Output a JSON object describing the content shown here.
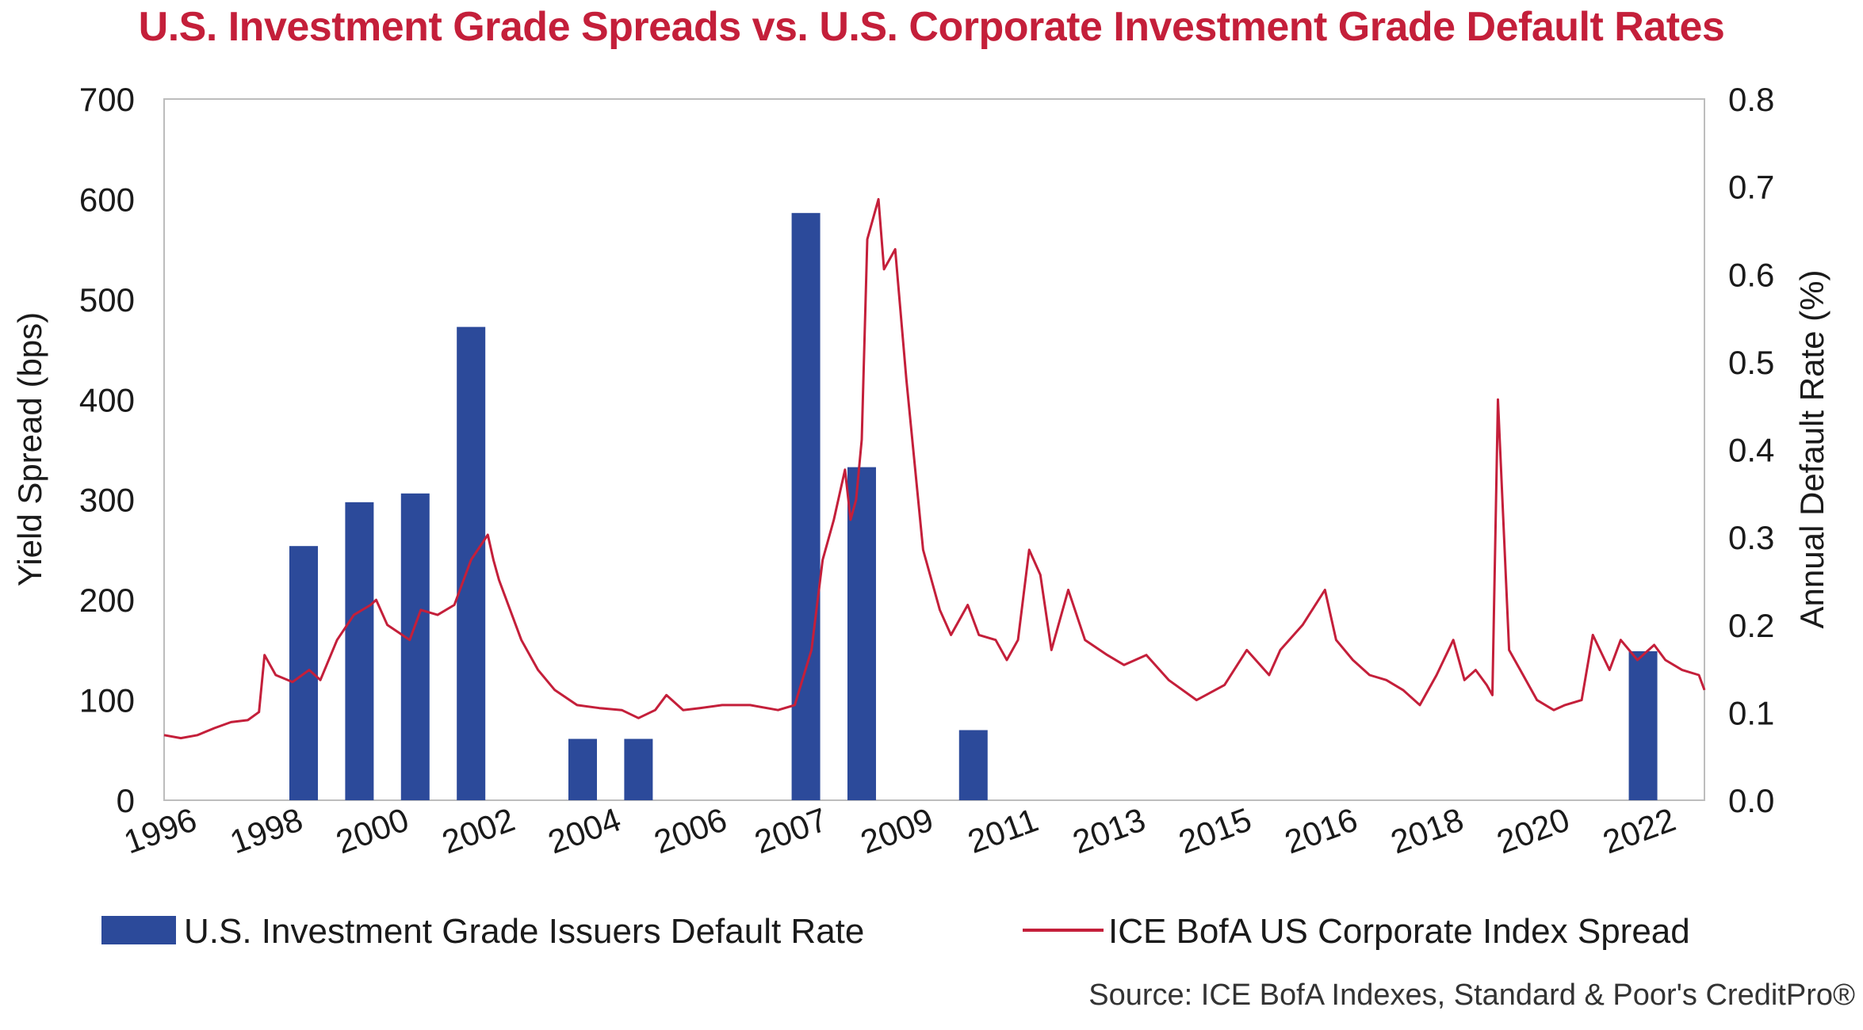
{
  "chart_data": {
    "type": "bar+line",
    "title": "U.S. Investment Grade Spreads vs. U.S. Corporate Investment Grade Default Rates",
    "ylabel_left": "Yield Spread (bps)",
    "ylabel_right": "Annual Default Rate (%)",
    "ylim_left": [
      0,
      700
    ],
    "ylim_right": [
      0,
      0.8
    ],
    "yticks_left": [
      "0",
      "100",
      "200",
      "300",
      "400",
      "500",
      "600",
      "700"
    ],
    "yticks_right": [
      "0.0",
      "0.1",
      "0.2",
      "0.3",
      "0.4",
      "0.5",
      "0.6",
      "0.7",
      "0.8"
    ],
    "xlim": [
      1996.0,
      2023.6
    ],
    "x_tick_labels": [
      "1996",
      "1998",
      "2000",
      "2002",
      "2004",
      "2006",
      "2007",
      "2009",
      "2011",
      "2013",
      "2015",
      "2016",
      "2018",
      "2020",
      "2022"
    ],
    "x_tick_positions": [
      1996.0,
      1997.9,
      1999.8,
      2001.7,
      2003.6,
      2005.5,
      2007.3,
      2009.2,
      2011.1,
      2013.0,
      2014.9,
      2016.8,
      2018.7,
      2020.6,
      2022.5
    ],
    "series": [
      {
        "name": "U.S. Investment Grade Issuers Default Rate",
        "type": "bar",
        "color": "#2c4a9a",
        "axis": "right",
        "x": [
          1998,
          1999,
          2000,
          2001,
          2003,
          2004,
          2007,
          2008,
          2010,
          2022
        ],
        "values": [
          0.29,
          0.34,
          0.35,
          0.54,
          0.07,
          0.07,
          0.67,
          0.38,
          0.08,
          0.17
        ]
      },
      {
        "name": "ICE BofA US Corporate Index Spread",
        "type": "line",
        "color": "#c41f3a",
        "axis": "left",
        "x": [
          1996.0,
          1996.3,
          1996.6,
          1996.9,
          1997.2,
          1997.5,
          1997.7,
          1997.8,
          1998.0,
          1998.3,
          1998.6,
          1998.8,
          1999.1,
          1999.4,
          1999.7,
          1999.8,
          2000.0,
          2000.4,
          2000.6,
          2000.9,
          2001.2,
          2001.5,
          2001.8,
          2001.9,
          2002.0,
          2002.4,
          2002.7,
          2003.0,
          2003.4,
          2003.8,
          2004.2,
          2004.5,
          2004.8,
          2005.0,
          2005.3,
          2005.6,
          2006.0,
          2006.5,
          2007.0,
          2007.3,
          2007.6,
          2007.8,
          2008.0,
          2008.2,
          2008.3,
          2008.4,
          2008.5,
          2008.6,
          2008.8,
          2008.9,
          2009.1,
          2009.3,
          2009.6,
          2009.9,
          2010.1,
          2010.4,
          2010.6,
          2010.9,
          2011.1,
          2011.3,
          2011.5,
          2011.7,
          2011.9,
          2012.2,
          2012.5,
          2012.9,
          2013.2,
          2013.6,
          2014.0,
          2014.5,
          2015.0,
          2015.4,
          2015.8,
          2016.0,
          2016.4,
          2016.8,
          2017.0,
          2017.3,
          2017.6,
          2017.9,
          2018.2,
          2018.5,
          2018.8,
          2019.1,
          2019.3,
          2019.5,
          2019.7,
          2019.8,
          2019.9,
          2020.1,
          2020.3,
          2020.6,
          2020.9,
          2021.1,
          2021.4,
          2021.6,
          2021.9,
          2022.1,
          2022.4,
          2022.7,
          2022.9,
          2023.2,
          2023.5,
          2023.6
        ],
        "values": [
          65,
          62,
          65,
          72,
          78,
          80,
          88,
          145,
          125,
          118,
          130,
          120,
          160,
          185,
          195,
          200,
          175,
          160,
          190,
          185,
          195,
          240,
          265,
          240,
          220,
          160,
          130,
          110,
          95,
          92,
          90,
          82,
          90,
          105,
          90,
          92,
          95,
          95,
          90,
          95,
          150,
          240,
          280,
          330,
          280,
          300,
          360,
          560,
          600,
          530,
          550,
          420,
          250,
          190,
          165,
          195,
          165,
          160,
          140,
          160,
          250,
          225,
          150,
          210,
          160,
          145,
          135,
          145,
          120,
          100,
          115,
          150,
          125,
          150,
          175,
          210,
          160,
          140,
          125,
          120,
          110,
          95,
          125,
          160,
          120,
          130,
          115,
          105,
          400,
          150,
          130,
          100,
          90,
          95,
          100,
          165,
          130,
          160,
          140,
          155,
          140,
          130,
          125,
          110
        ]
      }
    ],
    "legend": [
      "U.S. Investment Grade Issuers Default Rate",
      "ICE BofA US Corporate Index Spread"
    ],
    "legend_position": "bottom",
    "source": "Source: ICE BofA Indexes, Standard & Poor's CreditPro®",
    "grid": false
  }
}
